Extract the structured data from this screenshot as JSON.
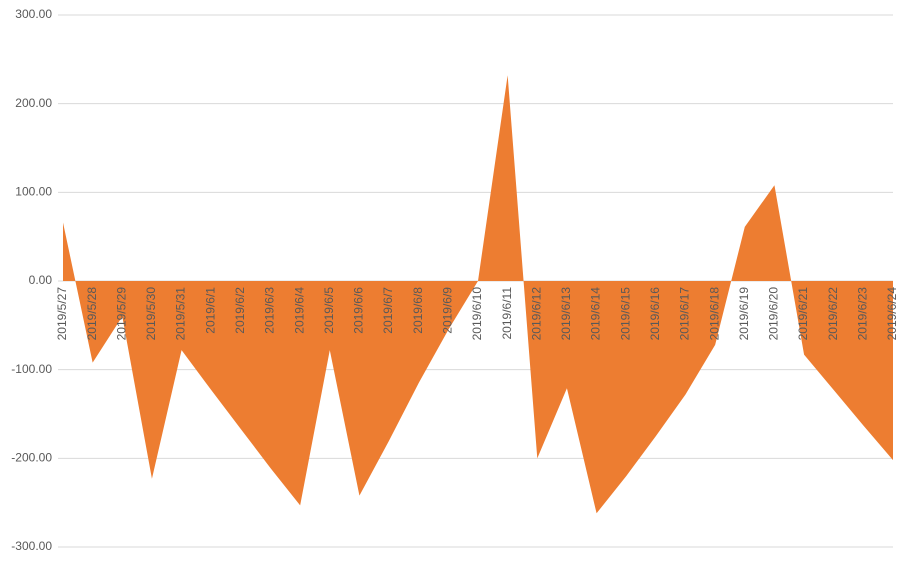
{
  "chart_data": {
    "type": "area",
    "color": "#ed7d31",
    "grid": true,
    "categories": [
      "2019/5/27",
      "2019/5/28",
      "2019/5/29",
      "2019/5/30",
      "2019/5/31",
      "2019/6/1",
      "2019/6/2",
      "2019/6/3",
      "2019/6/4",
      "2019/6/5",
      "2019/6/6",
      "2019/6/7",
      "2019/6/8",
      "2019/6/9",
      "2019/6/10",
      "2019/6/11",
      "2019/6/12",
      "2019/6/13",
      "2019/6/14",
      "2019/6/15",
      "2019/6/16",
      "2019/6/17",
      "2019/6/18",
      "2019/6/19",
      "2019/6/20",
      "2019/6/21",
      "2019/6/22",
      "2019/6/23",
      "2019/6/24"
    ],
    "values": [
      66,
      -92,
      -40,
      -223,
      -78,
      -123,
      -167,
      -211,
      -253,
      -78,
      -242,
      -180,
      -115,
      -55,
      0,
      232,
      -200,
      -121,
      -262,
      -220,
      -175,
      -128,
      -72,
      61,
      108,
      -83,
      -123,
      -163,
      -202
    ],
    "ylim": [
      -300,
      300
    ],
    "yticks": [
      {
        "value": -300,
        "label": "-300.00"
      },
      {
        "value": -200,
        "label": "-200.00"
      },
      {
        "value": -100,
        "label": "-100.00"
      },
      {
        "value": 0,
        "label": "0.00"
      },
      {
        "value": 100,
        "label": "100.00"
      },
      {
        "value": 200,
        "label": "200.00"
      },
      {
        "value": 300,
        "label": "300.00"
      }
    ]
  }
}
